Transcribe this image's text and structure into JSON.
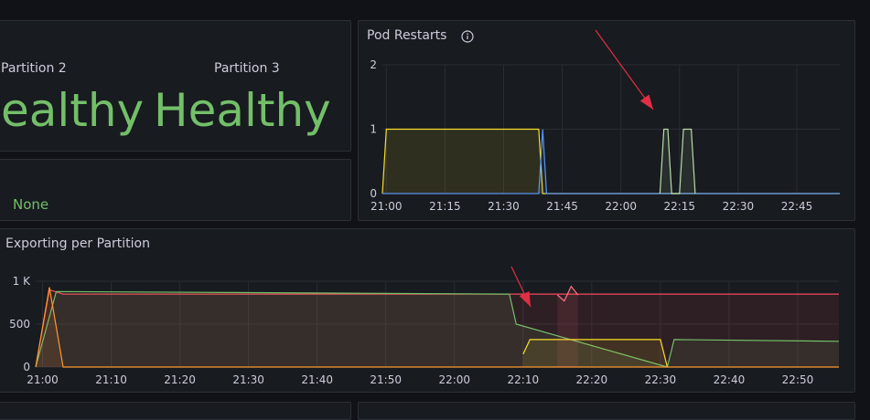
{
  "status_panel": {
    "items": [
      {
        "label": "Partition 2",
        "value": "ealthy"
      },
      {
        "label": "Partition 3",
        "value": "Healthy"
      }
    ]
  },
  "none_panel": {
    "value": "None"
  },
  "pod_restarts": {
    "title": "Pod Restarts",
    "info_icon": "info-icon"
  },
  "exporting": {
    "title": "Exporting per Partition"
  },
  "annotations": {
    "arrow_color": "#e02f44"
  },
  "chart_data": [
    {
      "type": "area",
      "title": "Pod Restarts",
      "x_ticks": [
        "21:00",
        "21:15",
        "21:30",
        "21:45",
        "22:00",
        "22:15",
        "22:30",
        "22:45"
      ],
      "y_ticks": [
        "0",
        "1",
        "2"
      ],
      "ylim": [
        0,
        2
      ],
      "grid": true,
      "series": [
        {
          "color": "#fade2a",
          "points": [
            [
              "20:59",
              0
            ],
            [
              "21:00",
              1
            ],
            [
              "21:39",
              1
            ],
            [
              "21:40",
              0
            ],
            [
              "22:56",
              0
            ]
          ]
        },
        {
          "color": "#5794f2",
          "points": [
            [
              "20:59",
              0
            ],
            [
              "21:39",
              0
            ],
            [
              "21:40",
              1
            ],
            [
              "21:41",
              0
            ],
            [
              "22:56",
              0
            ]
          ]
        },
        {
          "color": "#b7dbab",
          "points": [
            [
              "22:10",
              0
            ],
            [
              "22:11",
              1
            ],
            [
              "22:12",
              1
            ],
            [
              "22:13",
              0
            ],
            [
              "22:15",
              0
            ],
            [
              "22:16",
              1
            ],
            [
              "22:18",
              1
            ],
            [
              "22:19",
              0
            ]
          ]
        }
      ]
    },
    {
      "type": "area",
      "title": "Exporting per Partition",
      "x_ticks": [
        "21:00",
        "21:10",
        "21:20",
        "21:30",
        "21:40",
        "21:50",
        "22:00",
        "22:10",
        "22:20",
        "22:30",
        "22:40",
        "22:50"
      ],
      "y_ticks": [
        "0",
        "500",
        "1 K"
      ],
      "ylim": [
        0,
        1000
      ],
      "grid": true,
      "series": [
        {
          "color": "#f2495c",
          "points": [
            [
              "20:59",
              0
            ],
            [
              "21:01",
              900
            ],
            [
              "21:03",
              850
            ],
            [
              "22:56",
              850
            ]
          ]
        },
        {
          "color": "#73bf69",
          "points": [
            [
              "20:59",
              0
            ],
            [
              "21:02",
              880
            ],
            [
              "22:08",
              850
            ],
            [
              "22:09",
              500
            ],
            [
              "22:31",
              0
            ],
            [
              "22:32",
              320
            ],
            [
              "22:56",
              300
            ]
          ]
        },
        {
          "color": "#fade2a",
          "points": [
            [
              "22:10",
              150
            ],
            [
              "22:11",
              320
            ],
            [
              "22:30",
              320
            ],
            [
              "22:31",
              0
            ]
          ]
        },
        {
          "color": "#ff9830",
          "points": [
            [
              "20:59",
              0
            ],
            [
              "21:01",
              930
            ],
            [
              "21:03",
              0
            ],
            [
              "22:56",
              0
            ]
          ]
        },
        {
          "color": "#ff7383",
          "points": [
            [
              "22:15",
              840
            ],
            [
              "22:16",
              770
            ],
            [
              "22:17",
              940
            ],
            [
              "22:18",
              840
            ]
          ]
        }
      ]
    }
  ]
}
